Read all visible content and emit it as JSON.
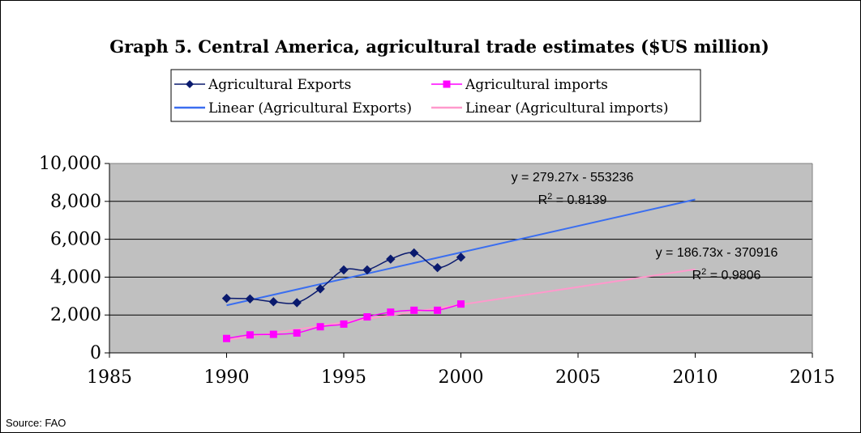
{
  "chart_data": {
    "type": "scatter",
    "title": "Graph 5. Central America, agricultural trade estimates ($US million)",
    "source": "Source: FAO",
    "xlim": [
      1985,
      2015
    ],
    "ylim": [
      0,
      10000
    ],
    "x_ticks": [
      1985,
      1990,
      1995,
      2000,
      2005,
      2010,
      2015
    ],
    "y_ticks": [
      0,
      2000,
      4000,
      6000,
      8000,
      10000
    ],
    "x_tick_labels": [
      "1985",
      "1990",
      "1995",
      "2000",
      "2005",
      "2010",
      "2015"
    ],
    "y_tick_labels": [
      "0",
      "2,000",
      "4,000",
      "6,000",
      "8,000",
      "10,000"
    ],
    "grid": "horizontal",
    "plot_background": "#c0c0c0",
    "legend_position": "top-center",
    "series": [
      {
        "name": "Agricultural Exports",
        "color": "#0a1a6e",
        "marker": "diamond",
        "x": [
          1990,
          1991,
          1992,
          1993,
          1994,
          1995,
          1996,
          1997,
          1998,
          1999,
          2000
        ],
        "y": [
          2880,
          2850,
          2700,
          2650,
          3380,
          4380,
          4380,
          4950,
          5280,
          4500,
          5050
        ]
      },
      {
        "name": "Agricultural imports",
        "color": "#ff00ff",
        "marker": "square",
        "x": [
          1990,
          1991,
          1992,
          1993,
          1994,
          1995,
          1996,
          1997,
          1998,
          1999,
          2000
        ],
        "y": [
          760,
          950,
          980,
          1050,
          1380,
          1520,
          1900,
          2150,
          2250,
          2250,
          2580
        ]
      }
    ],
    "trendlines": [
      {
        "name": "Linear (Agricultural Exports)",
        "color": "#3a6ef0",
        "x_range": [
          1990,
          2010
        ],
        "slope": 279.27,
        "intercept": -553236,
        "equation": "y = 279.27x - 553236",
        "r2_prefix": "R",
        "r2_sup": "2",
        "r2_value": " = 0.8139"
      },
      {
        "name": "Linear (Agricultural imports)",
        "color": "#ff99cc",
        "x_range": [
          1990,
          2010
        ],
        "slope": 186.73,
        "intercept": -370916,
        "equation": "y = 186.73x - 370916",
        "r2_prefix": "R",
        "r2_sup": "2",
        "r2_value": " = 0.9806"
      }
    ]
  }
}
